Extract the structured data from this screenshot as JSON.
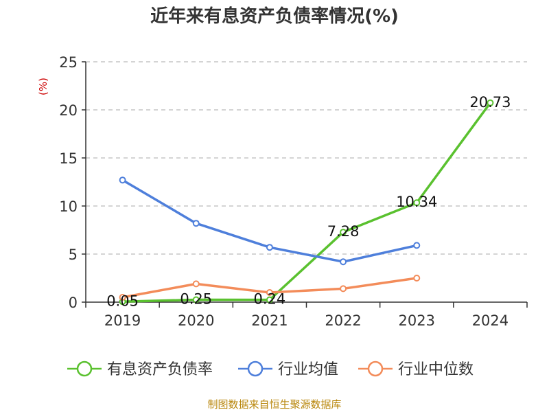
{
  "chart_data": {
    "type": "line",
    "title": "近年来有息资产负债率情况(%)",
    "ylabel": "(%)",
    "categories": [
      "2019",
      "2020",
      "2021",
      "2022",
      "2023",
      "2024"
    ],
    "yticks": [
      "0",
      "5",
      "10",
      "15",
      "20",
      "25"
    ],
    "ylim": [
      0,
      25
    ],
    "grid": true,
    "legend_position": "bottom",
    "series": [
      {
        "name": "有息资产负债率",
        "color": "#5ac12f",
        "values": [
          0.05,
          0.25,
          0.24,
          7.28,
          10.34,
          20.73
        ],
        "labels": [
          "0.05",
          "0.25",
          "0.24",
          "7.28",
          "10.34",
          "20.73"
        ]
      },
      {
        "name": "行业均值",
        "color": "#4e7fdb",
        "values": [
          12.7,
          8.2,
          5.7,
          4.2,
          5.9,
          null
        ]
      },
      {
        "name": "行业中位数",
        "color": "#f38c5a",
        "values": [
          0.5,
          1.9,
          1.0,
          1.4,
          2.5,
          null
        ]
      }
    ]
  },
  "source": "制图数据来自恒生聚源数据库"
}
